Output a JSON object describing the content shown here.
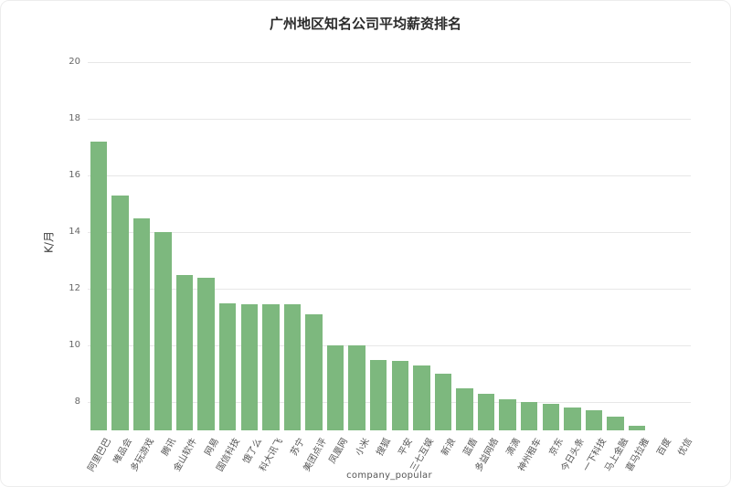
{
  "chart_data": {
    "type": "bar",
    "title": "广州地区知名公司平均薪资排名",
    "ylabel": "K/月",
    "xlabel": "company_popular",
    "categories": [
      "阿里巴巴",
      "唯品会",
      "多玩游戏",
      "腾讯",
      "金山软件",
      "网易",
      "国信科技",
      "饿了么",
      "科大讯飞",
      "苏宁",
      "美团点评",
      "凤凰网",
      "小米",
      "搜狐",
      "平安",
      "三七互娱",
      "新浪",
      "蓝盾",
      "多益网络",
      "滴滴",
      "神州租车",
      "京东",
      "今日头条",
      "一下科技",
      "马上金融",
      "喜马拉雅",
      "百度",
      "优信"
    ],
    "values": [
      17.2,
      15.3,
      14.5,
      14.0,
      12.5,
      12.4,
      11.5,
      11.45,
      11.45,
      11.45,
      11.1,
      10.0,
      10.0,
      9.5,
      9.45,
      9.3,
      9.0,
      8.5,
      8.3,
      8.1,
      8.0,
      7.95,
      7.8,
      7.7,
      7.5,
      7.15,
      7.0,
      7.0
    ],
    "ylim": [
      7,
      20.3
    ],
    "yticks": [
      8,
      10,
      12,
      14,
      16,
      18,
      20
    ],
    "grid": true,
    "legend": "none",
    "bar_color": "#7db87e"
  }
}
